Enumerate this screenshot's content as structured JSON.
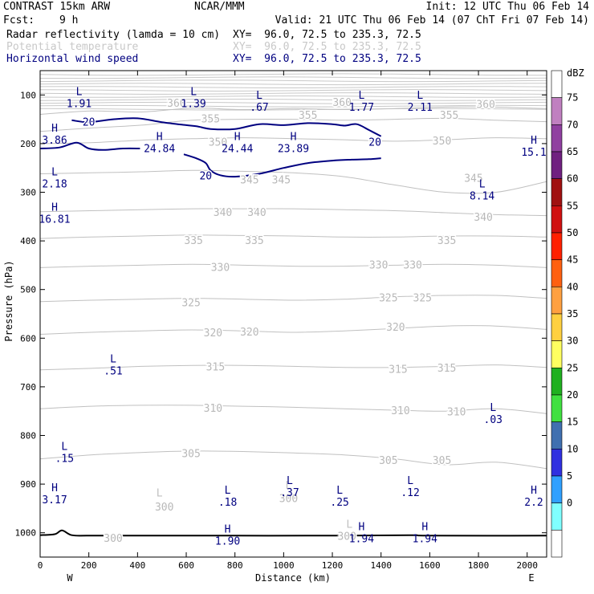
{
  "header": {
    "model": "CONTRAST 15km ARW",
    "center": "NCAR/MMM",
    "init": "Init: 12 UTC Thu 06 Feb 14",
    "fcst_label": "Fcst:",
    "fcst_value": "9 h",
    "valid": "Valid: 21 UTC Thu 06 Feb 14 (07 ChT Fri 07 Feb 14)",
    "fields": [
      {
        "name": "Radar reflectivity (lamda = 10 cm)",
        "xy": "XY=  96.0, 72.5 to 235.3, 72.5",
        "color": "#000000"
      },
      {
        "name": "Potential temperature",
        "xy": "XY=  96.0, 72.5 to 235.3, 72.5",
        "color": "#c8c8c8"
      },
      {
        "name": "Horizontal wind speed",
        "xy": "XY=  96.0, 72.5 to 235.3, 72.5",
        "color": "#000080"
      }
    ]
  },
  "chart_data": {
    "type": "contour cross-section",
    "title": "CONTRAST 15km ARW vertical cross-section",
    "xlabel": "Distance (km)",
    "ylabel": "Pressure (hPa)",
    "xlim": [
      0,
      2080
    ],
    "ylim": [
      1050,
      50
    ],
    "x_ticks": [
      0,
      200,
      400,
      600,
      800,
      1000,
      1200,
      1400,
      1600,
      1800,
      2000
    ],
    "y_ticks": [
      100,
      200,
      300,
      400,
      500,
      600,
      700,
      800,
      900,
      1000
    ],
    "west_label": "W",
    "east_label": "E",
    "colorbar": {
      "unit": "dBZ",
      "levels": [
        "75",
        "70",
        "65",
        "60",
        "55",
        "50",
        "45",
        "40",
        "35",
        "30",
        "25",
        "20",
        "15",
        "10",
        "5",
        "0"
      ],
      "colors": [
        "#ffffff",
        "#c080c0",
        "#9040a0",
        "#702080",
        "#a01010",
        "#d01010",
        "#ff2000",
        "#ff6010",
        "#ffa040",
        "#ffd040",
        "#ffff60",
        "#20b020",
        "#40e040",
        "#4070b0",
        "#3030e0",
        "#30a0ff",
        "#80ffff",
        "#ffffff"
      ]
    },
    "theta_contours": [
      {
        "value": 360,
        "p": [
          140,
          133,
          135,
          127,
          130,
          128,
          130,
          128,
          125,
          125,
          128
        ]
      },
      {
        "value": 355,
        "p": [
          175,
          168,
          162,
          152,
          150,
          150,
          152,
          150,
          148,
          152,
          155
        ]
      },
      {
        "value": 350,
        "p": [
          200,
          198,
          193,
          190,
          188,
          190,
          192,
          195,
          192,
          188,
          190
        ]
      },
      {
        "value": 345,
        "p": [
          262,
          260,
          258,
          255,
          257,
          260,
          268,
          285,
          300,
          300,
          278
        ]
      },
      {
        "value": 340,
        "p": [
          340,
          338,
          336,
          334,
          334,
          334,
          336,
          338,
          342,
          346,
          348
        ]
      },
      {
        "value": 335,
        "p": [
          395,
          392,
          390,
          388,
          389,
          390,
          392,
          392,
          390,
          390,
          392
        ]
      },
      {
        "value": 330,
        "p": [
          455,
          452,
          450,
          448,
          450,
          452,
          452,
          450,
          448,
          450,
          455
        ]
      },
      {
        "value": 325,
        "p": [
          525,
          522,
          520,
          518,
          520,
          522,
          520,
          515,
          512,
          512,
          518
        ]
      },
      {
        "value": 320,
        "p": [
          592,
          588,
          585,
          583,
          585,
          588,
          585,
          580,
          575,
          575,
          582
        ]
      },
      {
        "value": 315,
        "p": [
          665,
          662,
          658,
          656,
          656,
          658,
          660,
          660,
          658,
          655,
          660
        ]
      },
      {
        "value": 310,
        "p": [
          745,
          740,
          738,
          738,
          740,
          742,
          745,
          748,
          750,
          745,
          755
        ]
      },
      {
        "value": 305,
        "p": [
          848,
          840,
          835,
          832,
          833,
          836,
          840,
          848,
          860,
          855,
          868
        ]
      }
    ],
    "theta_labels": [
      {
        "text": "360",
        "x": 560,
        "p": 118
      },
      {
        "text": "360",
        "x": 1240,
        "p": 116
      },
      {
        "text": "360",
        "x": 1830,
        "p": 120
      },
      {
        "text": "355",
        "x": 700,
        "p": 150
      },
      {
        "text": "355",
        "x": 1100,
        "p": 142
      },
      {
        "text": "355",
        "x": 1680,
        "p": 142
      },
      {
        "text": "350",
        "x": 730,
        "p": 198
      },
      {
        "text": "350",
        "x": 1650,
        "p": 195
      },
      {
        "text": "345",
        "x": 860,
        "p": 275
      },
      {
        "text": "345",
        "x": 990,
        "p": 275
      },
      {
        "text": "345",
        "x": 1780,
        "p": 272
      },
      {
        "text": "340",
        "x": 750,
        "p": 342
      },
      {
        "text": "340",
        "x": 890,
        "p": 342
      },
      {
        "text": "340",
        "x": 1820,
        "p": 352
      },
      {
        "text": "335",
        "x": 630,
        "p": 400
      },
      {
        "text": "335",
        "x": 880,
        "p": 400
      },
      {
        "text": "335",
        "x": 1670,
        "p": 400
      },
      {
        "text": "330",
        "x": 740,
        "p": 455
      },
      {
        "text": "330",
        "x": 1390,
        "p": 450
      },
      {
        "text": "330",
        "x": 1530,
        "p": 450
      },
      {
        "text": "325",
        "x": 620,
        "p": 528
      },
      {
        "text": "325",
        "x": 1430,
        "p": 518
      },
      {
        "text": "325",
        "x": 1570,
        "p": 518
      },
      {
        "text": "320",
        "x": 710,
        "p": 590
      },
      {
        "text": "320",
        "x": 860,
        "p": 588
      },
      {
        "text": "320",
        "x": 1460,
        "p": 578
      },
      {
        "text": "315",
        "x": 720,
        "p": 660
      },
      {
        "text": "315",
        "x": 1470,
        "p": 665
      },
      {
        "text": "315",
        "x": 1670,
        "p": 662
      },
      {
        "text": "310",
        "x": 710,
        "p": 745
      },
      {
        "text": "310",
        "x": 1480,
        "p": 750
      },
      {
        "text": "310",
        "x": 1710,
        "p": 752
      },
      {
        "text": "305",
        "x": 620,
        "p": 838
      },
      {
        "text": "305",
        "x": 1430,
        "p": 852
      },
      {
        "text": "305",
        "x": 1650,
        "p": 852
      },
      {
        "text": "300",
        "x": 510,
        "p": 948
      },
      {
        "text": "300",
        "x": 1020,
        "p": 930
      },
      {
        "text": "300",
        "x": 300,
        "p": 1012
      },
      {
        "text": "300",
        "x": 1260,
        "p": 1008
      }
    ],
    "theta_markers": [
      {
        "text": "L",
        "x": 490,
        "p": 925
      },
      {
        "text": "L",
        "x": 1020,
        "p": 910
      },
      {
        "text": "L",
        "x": 1270,
        "p": 990
      }
    ],
    "wind_contour_value": "20",
    "wind_contours": [
      {
        "x": [
          130,
          200,
          300,
          400,
          500,
          600,
          650,
          700,
          800,
          900,
          1000,
          1100,
          1200,
          1250,
          1300,
          1350,
          1400
        ],
        "p": [
          152,
          156,
          150,
          148,
          156,
          162,
          165,
          170,
          170,
          160,
          162,
          158,
          160,
          163,
          160,
          172,
          185
        ]
      },
      {
        "x": [
          0,
          80,
          150,
          200,
          260,
          340,
          410
        ],
        "p": [
          210,
          208,
          198,
          210,
          213,
          210,
          210
        ]
      },
      {
        "x": [
          590,
          640,
          680,
          700,
          740,
          800,
          900,
          1000,
          1100,
          1200,
          1280,
          1350,
          1400
        ],
        "p": [
          222,
          230,
          240,
          255,
          265,
          268,
          262,
          250,
          240,
          235,
          233,
          232,
          230
        ]
      }
    ],
    "wind_labels": [
      {
        "text": "20",
        "x": 200,
        "p": 155
      },
      {
        "text": "20",
        "x": 1375,
        "p": 196
      },
      {
        "text": "20",
        "x": 680,
        "p": 265
      }
    ],
    "wind_extrema": [
      {
        "kind": "L",
        "value": "1.91",
        "x": 160,
        "p": 100
      },
      {
        "kind": "L",
        "value": "1.39",
        "x": 630,
        "p": 100
      },
      {
        "kind": "L",
        "value": ".67",
        "x": 900,
        "p": 108
      },
      {
        "kind": "L",
        "value": "1.77",
        "x": 1320,
        "p": 108
      },
      {
        "kind": "L",
        "value": "2.11",
        "x": 1560,
        "p": 108
      },
      {
        "kind": "H",
        "value": "3.86",
        "x": 10,
        "p": 175
      },
      {
        "kind": "H",
        "value": "24.84",
        "x": 490,
        "p": 193
      },
      {
        "kind": "H",
        "value": "24.44",
        "x": 810,
        "p": 193
      },
      {
        "kind": "H",
        "value": "23.89",
        "x": 1040,
        "p": 193
      },
      {
        "kind": "H",
        "value": "15.1",
        "x": 2040,
        "p": 200
      },
      {
        "kind": "L",
        "value": "2.18",
        "x": 10,
        "p": 265
      },
      {
        "kind": "L",
        "value": "8.14",
        "x": 1815,
        "p": 290
      },
      {
        "kind": "H",
        "value": "16.81",
        "x": 55,
        "p": 338
      },
      {
        "kind": "L",
        "value": ".51",
        "x": 300,
        "p": 650
      },
      {
        "kind": "L",
        "value": ".03",
        "x": 1860,
        "p": 750
      },
      {
        "kind": "L",
        "value": ".15",
        "x": 100,
        "p": 830
      },
      {
        "kind": "H",
        "value": "3.17",
        "x": 20,
        "p": 915
      },
      {
        "kind": "L",
        "value": ".18",
        "x": 770,
        "p": 920
      },
      {
        "kind": "L",
        "value": ".37",
        "x": 1025,
        "p": 900
      },
      {
        "kind": "L",
        "value": ".25",
        "x": 1230,
        "p": 920
      },
      {
        "kind": "L",
        "value": ".12",
        "x": 1520,
        "p": 900
      },
      {
        "kind": "H",
        "value": "2.2",
        "x": 2040,
        "p": 920
      },
      {
        "kind": "H",
        "value": "1.90",
        "x": 770,
        "p": 1000
      },
      {
        "kind": "H",
        "value": "1.94",
        "x": 1320,
        "p": 995
      },
      {
        "kind": "H",
        "value": "1.94",
        "x": 1580,
        "p": 995
      }
    ],
    "ground": {
      "x": [
        0,
        60,
        90,
        130,
        200,
        400,
        800,
        1200,
        1520,
        1600,
        2080
      ],
      "p": [
        1005,
        1003,
        995,
        1005,
        1006,
        1006,
        1006,
        1006,
        1005,
        1006,
        1006
      ]
    }
  }
}
